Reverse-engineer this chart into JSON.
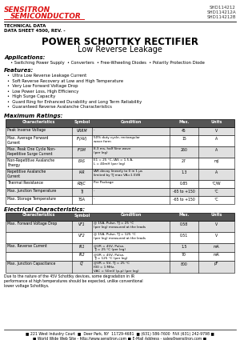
{
  "title_company": "SENSITRON",
  "title_company2": "SEMICONDUCTOR",
  "part_numbers": "SHD114212\nSHD114212A\nSHD114212B",
  "tech_data": "TECHNICAL DATA",
  "data_sheet": "DATA SHEET 4500, REV. -",
  "main_title": "POWER SCHOTTKY RECTIFIER",
  "main_subtitle": "Low Reverse Leakage",
  "applications_title": "Applications:",
  "applications_bullet": "     • Switching Power Supply  • Converters  • Free-Wheeling Diodes  • Polarity Protection Diode",
  "features_title": "Features:",
  "features": [
    "Ultra Low Reverse Leakage Current",
    "Soft Reverse Recovery at Low and High Temperature",
    "Very Low Forward Voltage Drop",
    "Low Power Loss, High Efficiency",
    "High Surge Capacity",
    "Guard Ring for Enhanced Durability and Long Term Reliability",
    "Guaranteed Reverse Avalanche Characteristics"
  ],
  "max_ratings_title": "Maximum Ratings:",
  "max_ratings_headers": [
    "Characteristics",
    "Symbol",
    "Condition",
    "Max.",
    "Units"
  ],
  "max_ratings_rows": [
    [
      "Peak Inverse Voltage",
      "VRRM",
      "-",
      "45",
      "V"
    ],
    [
      "Max. Average Forward\nCurrent",
      "IF(AV)",
      "50% duty cycle, rectangular\nwave form",
      "15",
      "A"
    ],
    [
      "Max. Peak One Cycle Non-\nRepetitive Surge Current",
      "IFSM",
      "8.3 ms, half Sine wave\n(per leg)",
      "260",
      "A"
    ],
    [
      "Non-Repetitive Avalanche\nEnergy",
      "EAS",
      "E1 = 25 °C, IAS = 1.5 A,\nL = 40mH (per leg)",
      "27",
      "mJ"
    ],
    [
      "Repetitive Avalanche\nCurrent",
      "IAR",
      "IAR decay linearly to 0 in 1 μs\nlimited by TJ max VA=1.5VB",
      "1.3",
      "A"
    ],
    [
      "Thermal Resistance",
      "RθJC",
      "Per Package",
      "0.85",
      "°C/W"
    ],
    [
      "Max. Junction Temperature",
      "TJ",
      "-",
      "-65 to +150",
      "°C"
    ],
    [
      "Max. Storage Temperature",
      "TSA",
      "-",
      "-65 to +150",
      "°C"
    ]
  ],
  "elec_char_title": "Electrical Characteristics:",
  "elec_char_headers": [
    "Characteristics",
    "Symbol",
    "Condition",
    "Max.",
    "Units"
  ],
  "elec_char_rows": [
    [
      "Max. Forward Voltage Drop",
      "VF1",
      "@ 15A, Pulse, TJ = 25 °C\n(per leg) measured at the leads",
      "0.58",
      "V"
    ],
    [
      "",
      "VF2",
      "@ 15A, Pulse, TJ = 125 °C\n(per leg) measured at the leads",
      "0.51",
      "V"
    ],
    [
      "Max. Reverse Current",
      "IR1",
      "@VR = 45V, Pulse,\nTJ = 25 °C (per leg)",
      "1.5",
      "mA"
    ],
    [
      "",
      "IR2",
      "@VR = 45V, Pulse,\nTJ = 125 °C (per leg)",
      "70",
      "mA"
    ],
    [
      "Max. Junction Capacitance",
      "CJ",
      "@VR = 5V, TJ = 25 °C\nf00 = 1 MHz,\nVAC = 50mV (p-p) (per leg)",
      "800",
      "pF"
    ]
  ],
  "footer_note": "Due to the nature of the 45V Schottky devices, some degradation in IR performance at high temperatures should be expected, unlike conventional lower voltage Schottkys.",
  "footer_address": "■ 221 West Industry Court  ■  Deer Park, NY  11729-4681  ■ (631) 586-7600  FAX (631) 242-9798 ■",
  "footer_web": "■ World Wide Web Site - http://www.sensitron.com ■ E-Mail Address - sales@sensitron.com ■",
  "bg_color": "#ffffff",
  "header_bg": "#555555",
  "header_fg": "#ffffff",
  "company_color": "#dd1111"
}
